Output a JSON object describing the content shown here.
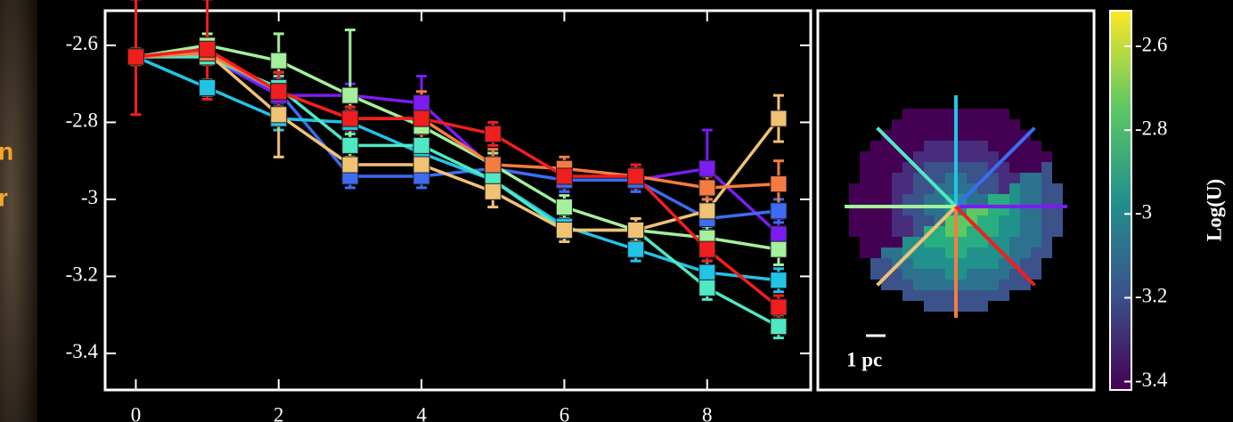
{
  "side_text": [
    "n",
    "r"
  ],
  "chart_data": {
    "type": "line",
    "xlim": [
      -0.43,
      9.45
    ],
    "ylim": [
      -3.495,
      -2.51
    ],
    "xticks": [
      0,
      2,
      4,
      6,
      8
    ],
    "yticks": [
      -2.6,
      -2.8,
      -3.0,
      -3.2,
      -3.4
    ],
    "x": [
      0,
      1,
      2,
      3,
      4,
      5,
      6,
      7,
      8,
      9
    ],
    "series": [
      {
        "color": "#7b1cf0",
        "values": [
          -2.63,
          -2.63,
          -2.73,
          -2.73,
          -2.75,
          -2.92,
          -2.95,
          -2.95,
          -2.92,
          -3.09
        ],
        "errors": [
          0.02,
          0.02,
          0.03,
          0.03,
          0.07,
          0.04,
          0.03,
          0.03,
          0.1,
          0.04
        ]
      },
      {
        "color": "#3d6cf2",
        "values": [
          -2.63,
          -2.63,
          -2.72,
          -2.94,
          -2.94,
          -2.92,
          -2.95,
          -2.95,
          -3.05,
          -3.03
        ],
        "errors": [
          0.02,
          0.02,
          0.03,
          0.03,
          0.03,
          0.03,
          0.03,
          0.03,
          0.03,
          0.03
        ]
      },
      {
        "color": "#22c4e6",
        "values": [
          -2.63,
          -2.71,
          -2.79,
          -2.8,
          -2.88,
          -2.95,
          -3.07,
          -3.13,
          -3.19,
          -3.21
        ],
        "errors": [
          0.02,
          0.02,
          0.03,
          0.03,
          0.03,
          0.03,
          0.03,
          0.03,
          0.03,
          0.03
        ]
      },
      {
        "color": "#4fe8c2",
        "values": [
          -2.63,
          -2.63,
          -2.71,
          -2.86,
          -2.86,
          -2.95,
          -3.08,
          -3.08,
          -3.23,
          -3.33
        ],
        "errors": [
          0.02,
          0.02,
          0.03,
          0.03,
          0.03,
          0.03,
          0.03,
          0.03,
          0.03,
          0.03
        ]
      },
      {
        "color": "#a4f09c",
        "values": [
          -2.63,
          -2.6,
          -2.64,
          -2.73,
          -2.81,
          -2.91,
          -3.02,
          -3.08,
          -3.1,
          -3.13
        ],
        "errors": [
          0.02,
          0.03,
          0.07,
          0.17,
          0.05,
          0.03,
          0.03,
          0.03,
          0.03,
          0.04
        ]
      },
      {
        "color": "#f0c274",
        "values": [
          -2.63,
          -2.62,
          -2.78,
          -2.91,
          -2.91,
          -2.98,
          -3.08,
          -3.08,
          -3.03,
          -2.79
        ],
        "errors": [
          0.02,
          0.02,
          0.11,
          0.04,
          0.04,
          0.04,
          0.03,
          0.03,
          0.03,
          0.06
        ]
      },
      {
        "color": "#f57c40",
        "values": [
          -2.63,
          -2.62,
          -2.72,
          -2.79,
          -2.79,
          -2.91,
          -2.92,
          -2.94,
          -2.97,
          -2.96
        ],
        "errors": [
          0.02,
          0.03,
          0.05,
          0.03,
          0.07,
          0.04,
          0.03,
          0.03,
          0.03,
          0.06
        ]
      },
      {
        "color": "#f01e1e",
        "values": [
          -2.63,
          -2.61,
          -2.72,
          -2.79,
          -2.79,
          -2.83,
          -2.94,
          -2.94,
          -3.13,
          -3.28
        ],
        "errors": [
          0.15,
          0.13,
          0.05,
          0.03,
          0.04,
          0.03,
          0.03,
          0.03,
          0.03,
          0.03
        ]
      }
    ],
    "map_scale_label": "1 pc",
    "colorbar": {
      "label": "Log(U)",
      "lim": [
        -3.42,
        -2.515
      ],
      "ticks": [
        -2.6,
        -2.8,
        -3.0,
        -3.2,
        -3.4
      ]
    }
  }
}
